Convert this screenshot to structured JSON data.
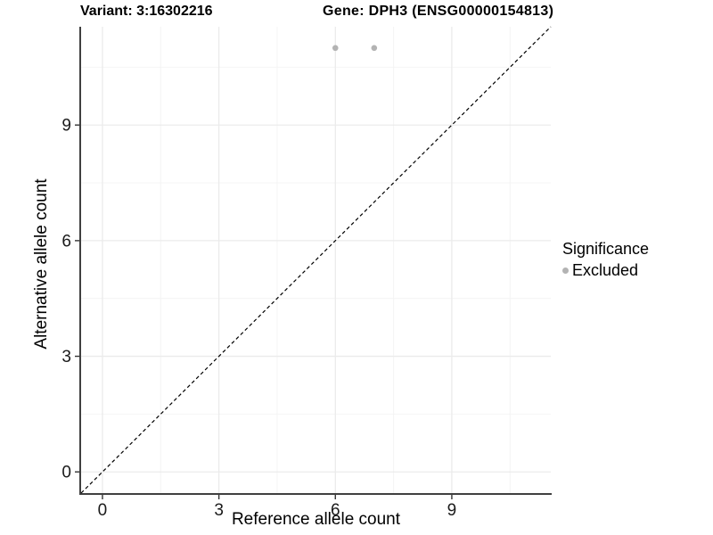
{
  "chart_data": {
    "type": "scatter",
    "title_left": "Variant: 3:16302216",
    "title_right": "Gene: DPH3 (ENSG00000154813)",
    "xlabel": "Reference allele count",
    "ylabel": "Alternative allele count",
    "xlim": [
      -0.55,
      11.55
    ],
    "ylim": [
      -0.55,
      11.55
    ],
    "x_ticks": [
      0,
      3,
      6,
      9
    ],
    "y_ticks": [
      0,
      3,
      6,
      9
    ],
    "x_minor_ticks": [
      1.5,
      4.5,
      7.5,
      10.5
    ],
    "y_minor_ticks": [
      1.5,
      4.5,
      7.5,
      10.5
    ],
    "grid": true,
    "series": [
      {
        "name": "Excluded",
        "color": "#b3b3b3",
        "points": [
          {
            "x": 6,
            "y": 11
          },
          {
            "x": 7,
            "y": 11
          }
        ]
      }
    ],
    "reference_line": {
      "type": "identity",
      "style": "dashed",
      "color": "#000000"
    },
    "legend": {
      "title": "Significance",
      "position": "right",
      "items": [
        {
          "label": "Excluded",
          "color": "#b3b3b3"
        }
      ]
    },
    "colors": {
      "axis_line": "#404040",
      "tick_mark": "#333333",
      "tick_label": "#1a1a1a",
      "grid_major": "#ebebeb",
      "grid_minor": "#f4f4f4",
      "background": "#ffffff"
    }
  }
}
